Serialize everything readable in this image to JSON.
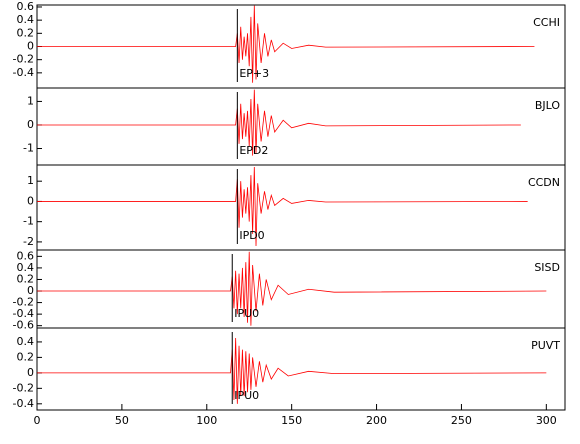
{
  "chart_data": [
    {
      "type": "line",
      "station": "CCHI",
      "phase": "EP+3",
      "phase_x": 118,
      "color": "#ff0000",
      "xlim": [
        0,
        311
      ],
      "ylim": [
        -0.63,
        0.63
      ],
      "yticks": [
        -0.4,
        -0.2,
        0.0,
        0.2,
        0.4,
        0.6
      ],
      "x": [
        0,
        117,
        118,
        119,
        120,
        121,
        122,
        123,
        124,
        125,
        126,
        127,
        128,
        129,
        130,
        132,
        134,
        136,
        138,
        140,
        145,
        150,
        160,
        170,
        293
      ],
      "values": [
        0,
        0,
        0.2,
        -0.25,
        0.3,
        -0.2,
        0.15,
        -0.15,
        0.2,
        -0.3,
        0.45,
        -0.55,
        0.62,
        -0.5,
        0.35,
        -0.25,
        0.2,
        -0.15,
        0.1,
        -0.08,
        0.05,
        -0.03,
        0.02,
        -0.01,
        0
      ]
    },
    {
      "type": "line",
      "station": "BJLO",
      "phase": "EPD2",
      "phase_x": 118,
      "color": "#ff0000",
      "xlim": [
        0,
        311
      ],
      "ylim": [
        -1.7,
        1.57
      ],
      "yticks": [
        -1,
        0,
        1
      ],
      "x": [
        0,
        117,
        118,
        119,
        120,
        121,
        122,
        123,
        124,
        125,
        126,
        127,
        128,
        129,
        130,
        132,
        134,
        136,
        138,
        140,
        145,
        150,
        160,
        170,
        285
      ],
      "values": [
        0,
        0,
        0.7,
        -0.8,
        0.9,
        -0.6,
        0.5,
        -0.5,
        0.6,
        -0.9,
        1.1,
        -1.3,
        1.5,
        -1.2,
        0.9,
        -0.7,
        0.6,
        -0.5,
        0.4,
        -0.3,
        0.2,
        -0.12,
        0.07,
        -0.04,
        0
      ]
    },
    {
      "type": "line",
      "station": "CCDN",
      "phase": "IPD0",
      "phase_x": 118,
      "color": "#ff0000",
      "xlim": [
        0,
        311
      ],
      "ylim": [
        -2.4,
        1.8
      ],
      "yticks": [
        -2,
        -1,
        0,
        1
      ],
      "x": [
        0,
        117,
        118,
        119,
        120,
        121,
        122,
        123,
        124,
        125,
        126,
        127,
        128,
        129,
        130,
        132,
        134,
        136,
        138,
        140,
        145,
        150,
        160,
        170,
        289
      ],
      "values": [
        0,
        0,
        1.1,
        -1.3,
        1.0,
        -0.8,
        0.6,
        -0.6,
        0.7,
        -1.0,
        1.3,
        -1.6,
        1.7,
        -2.2,
        0.9,
        -0.6,
        0.5,
        -0.4,
        0.3,
        -0.2,
        0.15,
        -0.1,
        0.05,
        -0.03,
        0
      ]
    },
    {
      "type": "line",
      "station": "SISD",
      "phase": "IPU0",
      "phase_x": 115,
      "color": "#ff0000",
      "xlim": [
        0,
        311
      ],
      "ylim": [
        -0.64,
        0.71
      ],
      "yticks": [
        -0.6,
        -0.4,
        -0.2,
        0.0,
        0.2,
        0.4,
        0.6
      ],
      "x": [
        0,
        114,
        115,
        116,
        117,
        118,
        119,
        120,
        121,
        122,
        123,
        124,
        125,
        126,
        127,
        129,
        131,
        133,
        135,
        138,
        142,
        148,
        160,
        175,
        300
      ],
      "values": [
        0,
        0,
        0.25,
        -0.3,
        0.35,
        -0.4,
        0.3,
        -0.3,
        0.4,
        -0.45,
        0.5,
        -0.55,
        0.68,
        -0.6,
        0.45,
        -0.35,
        0.3,
        -0.25,
        0.2,
        -0.15,
        0.1,
        -0.06,
        0.03,
        -0.02,
        0
      ]
    },
    {
      "type": "line",
      "station": "PUVT",
      "phase": "IPU0",
      "phase_x": 115,
      "color": "#ff0000",
      "xlim": [
        0,
        311
      ],
      "ylim": [
        -0.48,
        0.58
      ],
      "yticks": [
        -0.4,
        -0.2,
        0.0,
        0.2,
        0.4
      ],
      "xticks": [
        0,
        50,
        100,
        150,
        200,
        250,
        300
      ],
      "x": [
        0,
        114,
        115,
        116,
        117,
        118,
        119,
        120,
        121,
        122,
        123,
        124,
        125,
        126,
        127,
        129,
        131,
        133,
        135,
        138,
        142,
        148,
        160,
        175,
        300
      ],
      "values": [
        0,
        0,
        0.3,
        -0.35,
        0.45,
        -0.4,
        0.35,
        -0.3,
        0.3,
        -0.3,
        0.28,
        -0.25,
        0.25,
        -0.22,
        0.2,
        -0.18,
        0.15,
        -0.12,
        0.1,
        -0.08,
        0.06,
        -0.04,
        0.02,
        -0.01,
        0
      ]
    }
  ]
}
